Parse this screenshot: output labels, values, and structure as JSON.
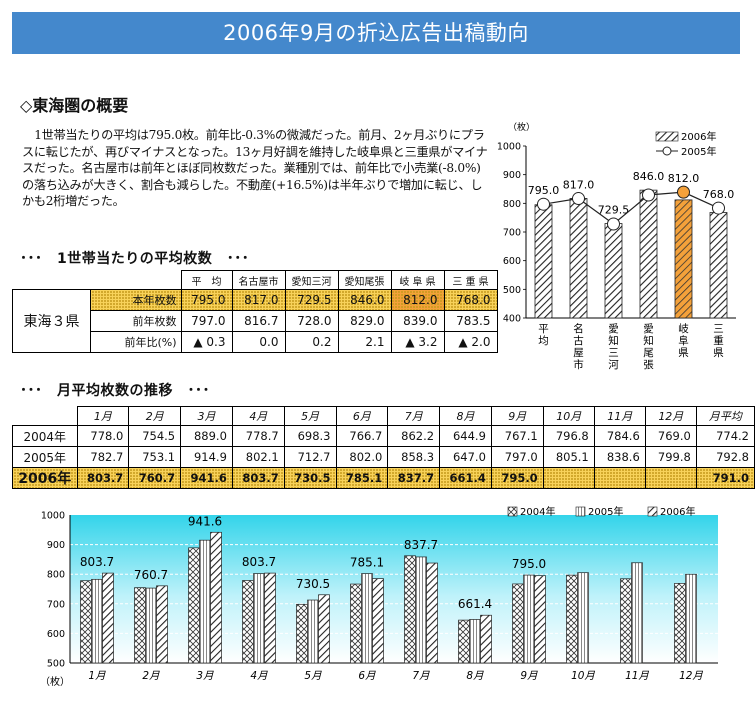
{
  "banner": {
    "title": "2006年9月の折込広告出稿動向"
  },
  "section": {
    "title": "◇東海圏の概要",
    "paragraph": "1世帯当たりの平均は795.0枚。前年比-0.3%の微減だった。前月、2ヶ月ぶりにプラスに転じたが、再びマイナスとなった。13ヶ月好調を維持した岐阜県と三重県がマイナスだった。名古屋市は前年とほぼ同枚数だった。業種別では、前年比で小売業(-8.0%)の落ち込みが大きく、割合も減らした。不動産(+16.5%)は半年ぶりで増加に転じ、しかも2桁増だった。"
  },
  "table1": {
    "title": "･･･　1世帯当たりの平均枚数　･･･",
    "region": "東海３県",
    "headers": [
      "平　均",
      "名古屋市",
      "愛知三河",
      "愛知尾張",
      "岐 阜 県",
      "三 重 県"
    ],
    "rows": [
      {
        "label": "本年枚数",
        "values": [
          "795.0",
          "817.0",
          "729.5",
          "846.0",
          "812.0",
          "768.0"
        ]
      },
      {
        "label": "前年枚数",
        "values": [
          "797.0",
          "816.7",
          "728.0",
          "829.0",
          "839.0",
          "783.5"
        ]
      },
      {
        "label": "前年比(%)",
        "values": [
          "▲ 0.3",
          "0.0",
          "0.2",
          "2.1",
          "▲ 3.2",
          "▲ 2.0"
        ]
      }
    ]
  },
  "table2": {
    "title": "･･･　月平均枚数の推移　･･･",
    "headers": [
      "1月",
      "2月",
      "3月",
      "4月",
      "5月",
      "6月",
      "7月",
      "8月",
      "9月",
      "10月",
      "11月",
      "12月",
      "月平均"
    ],
    "rows": [
      {
        "label": "2004年",
        "values": [
          "778.0",
          "754.5",
          "889.0",
          "778.7",
          "698.3",
          "766.7",
          "862.2",
          "644.9",
          "767.1",
          "796.8",
          "784.6",
          "769.0",
          "774.2"
        ]
      },
      {
        "label": "2005年",
        "values": [
          "782.7",
          "753.1",
          "914.9",
          "802.1",
          "712.7",
          "802.0",
          "858.3",
          "647.0",
          "797.0",
          "805.1",
          "838.6",
          "799.8",
          "792.8"
        ]
      },
      {
        "label": "2006年",
        "values": [
          "803.7",
          "760.7",
          "941.6",
          "803.7",
          "730.5",
          "785.1",
          "837.7",
          "661.4",
          "795.0",
          "",
          "",
          "",
          "791.0"
        ]
      }
    ]
  },
  "chart_data": [
    {
      "type": "bar",
      "ylabel": "（枚）",
      "ylim": [
        400,
        1000
      ],
      "yticks": [
        400,
        500,
        600,
        700,
        800,
        900,
        1000
      ],
      "categories": [
        "平均",
        "名古屋市",
        "愛知三河",
        "愛知尾張",
        "岐阜県",
        "三重県"
      ],
      "category_labels": [
        "平\n\n均",
        "名\n古\n屋\n市",
        "愛\n知\n三\n河",
        "愛\n知\n尾\n張",
        "岐\n阜\n県",
        "三\n重\n県"
      ],
      "series": [
        {
          "name": "2006年",
          "type": "bar",
          "values": [
            795.0,
            817.0,
            729.5,
            846.0,
            812.0,
            768.0
          ]
        },
        {
          "name": "2005年",
          "type": "line",
          "values": [
            797.0,
            816.7,
            728.0,
            829.0,
            839.0,
            783.5
          ]
        }
      ],
      "data_labels": [
        "795.0",
        "817.0",
        "729.5",
        "846.0",
        "812.0",
        "768.0"
      ],
      "highlight_index": 4,
      "legend": "top-right"
    },
    {
      "type": "bar",
      "ylabel": "（枚）",
      "ylim": [
        500,
        1000
      ],
      "yticks": [
        500,
        600,
        700,
        800,
        900,
        1000
      ],
      "categories": [
        "1月",
        "2月",
        "3月",
        "4月",
        "5月",
        "6月",
        "7月",
        "8月",
        "9月",
        "10月",
        "11月",
        "12月"
      ],
      "series": [
        {
          "name": "2004年",
          "values": [
            778.0,
            754.5,
            889.0,
            778.7,
            698.3,
            766.7,
            862.2,
            644.9,
            767.1,
            796.8,
            784.6,
            769.0
          ]
        },
        {
          "name": "2005年",
          "values": [
            782.7,
            753.1,
            914.9,
            802.1,
            712.7,
            802.0,
            858.3,
            647.0,
            797.0,
            805.1,
            838.6,
            799.8
          ]
        },
        {
          "name": "2006年",
          "values": [
            803.7,
            760.7,
            941.6,
            803.7,
            730.5,
            785.1,
            837.7,
            661.4,
            795.0,
            null,
            null,
            null
          ]
        }
      ],
      "data_labels": [
        "803.7",
        "760.7",
        "941.6",
        "803.7",
        "730.5",
        "785.1",
        "837.7",
        "661.4",
        "795.0",
        "",
        "",
        ""
      ],
      "legend": "top-right"
    }
  ],
  "colors": {
    "banner": "#4488cc",
    "highlight": "#f8d25a",
    "highlight_gifu": "#f4a13a",
    "plot_bg": "#33d4ea"
  }
}
